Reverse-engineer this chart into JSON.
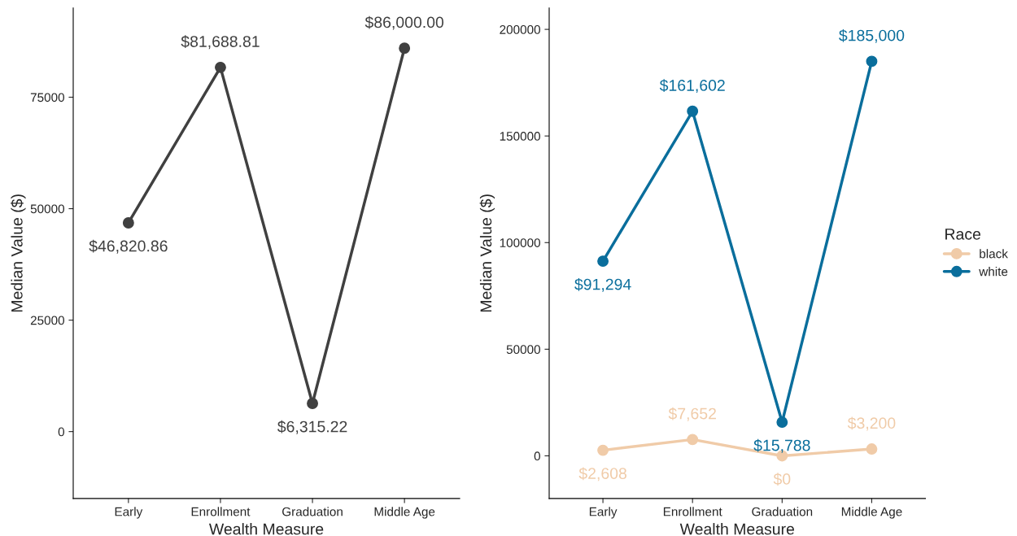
{
  "chart_data": [
    {
      "type": "line",
      "xlabel": "Wealth Measure",
      "ylabel": "Median Value ($)",
      "categories": [
        "Early",
        "Enrollment",
        "Graduation",
        "Middle Age"
      ],
      "series": [
        {
          "color": "#404040",
          "values": [
            46820.86,
            81688.81,
            6315.22,
            86000.0
          ],
          "value_labels": [
            "$46,820.86",
            "$81,688.81",
            "$6,315.22",
            "$86,000.00"
          ]
        }
      ],
      "ylim": [
        -15000,
        95000
      ],
      "yticks": [
        0,
        25000,
        50000,
        75000
      ],
      "marker": "circle",
      "grid": false,
      "legend": false
    },
    {
      "type": "line",
      "xlabel": "Wealth Measure",
      "ylabel": "Median Value ($)",
      "legend_title": "Race",
      "categories": [
        "Early",
        "Enrollment",
        "Graduation",
        "Middle Age"
      ],
      "series": [
        {
          "name": "black",
          "color": "#f0cba8",
          "values": [
            2608,
            7652,
            0,
            3200
          ],
          "value_labels": [
            "$2,608",
            "$7,652",
            "$0",
            "$3,200"
          ]
        },
        {
          "name": "white",
          "color": "#0a6e9c",
          "values": [
            91294,
            161602,
            15788,
            185000
          ],
          "value_labels": [
            "$91,294",
            "$161,602",
            "$15,788",
            "$185,000"
          ]
        }
      ],
      "ylim": [
        -20000,
        210000
      ],
      "yticks": [
        0,
        50000,
        100000,
        150000,
        200000
      ],
      "marker": "circle",
      "grid": false,
      "legend": "right"
    }
  ]
}
